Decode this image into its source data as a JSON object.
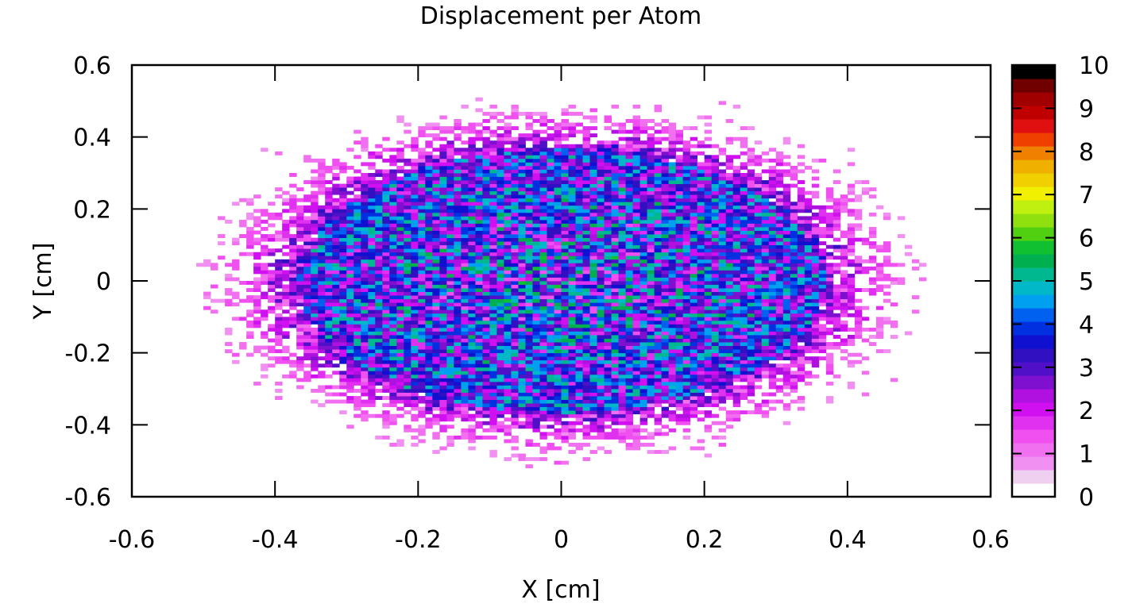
{
  "chart_data": {
    "type": "heatmap",
    "title": "Displacement per Atom",
    "xlabel": "X [cm]",
    "ylabel": "Y [cm]",
    "xlim": [
      -0.6,
      0.6
    ],
    "ylim": [
      -0.6,
      0.6
    ],
    "x_ticks": [
      "-0.6",
      "-0.4",
      "-0.2",
      "0",
      "0.2",
      "0.4",
      "0.6"
    ],
    "y_ticks": [
      "-0.6",
      "-0.4",
      "-0.2",
      "0",
      "0.2",
      "0.4",
      "0.6"
    ],
    "colorbar": {
      "range": [
        0,
        10
      ],
      "ticks": [
        "0",
        "1",
        "2",
        "3",
        "4",
        "5",
        "6",
        "7",
        "8",
        "9",
        "10"
      ],
      "colors": [
        "#ffffff",
        "#f0d0f0",
        "#f090f0",
        "#f070f0",
        "#f050f0",
        "#e030f0",
        "#d010f0",
        "#b010e0",
        "#8010d0",
        "#5010c8",
        "#3010c0",
        "#1010d0",
        "#0030e0",
        "#0060f0",
        "#00a0f0",
        "#00b8c8",
        "#00b890",
        "#00b050",
        "#10c030",
        "#50d010",
        "#90e010",
        "#c0f010",
        "#f0f000",
        "#f0d000",
        "#f0b000",
        "#f08000",
        "#f04000",
        "#e01010",
        "#c00000",
        "#a00000",
        "#700000",
        "#000000"
      ]
    },
    "distribution": {
      "shape": "ellipse",
      "center": [
        0.0,
        0.0
      ],
      "x_semi_axis": 0.47,
      "y_semi_axis": 0.47,
      "bin_width": 0.01,
      "value_range": [
        0,
        7
      ],
      "typical_value": 3.5
    },
    "grid": false
  }
}
